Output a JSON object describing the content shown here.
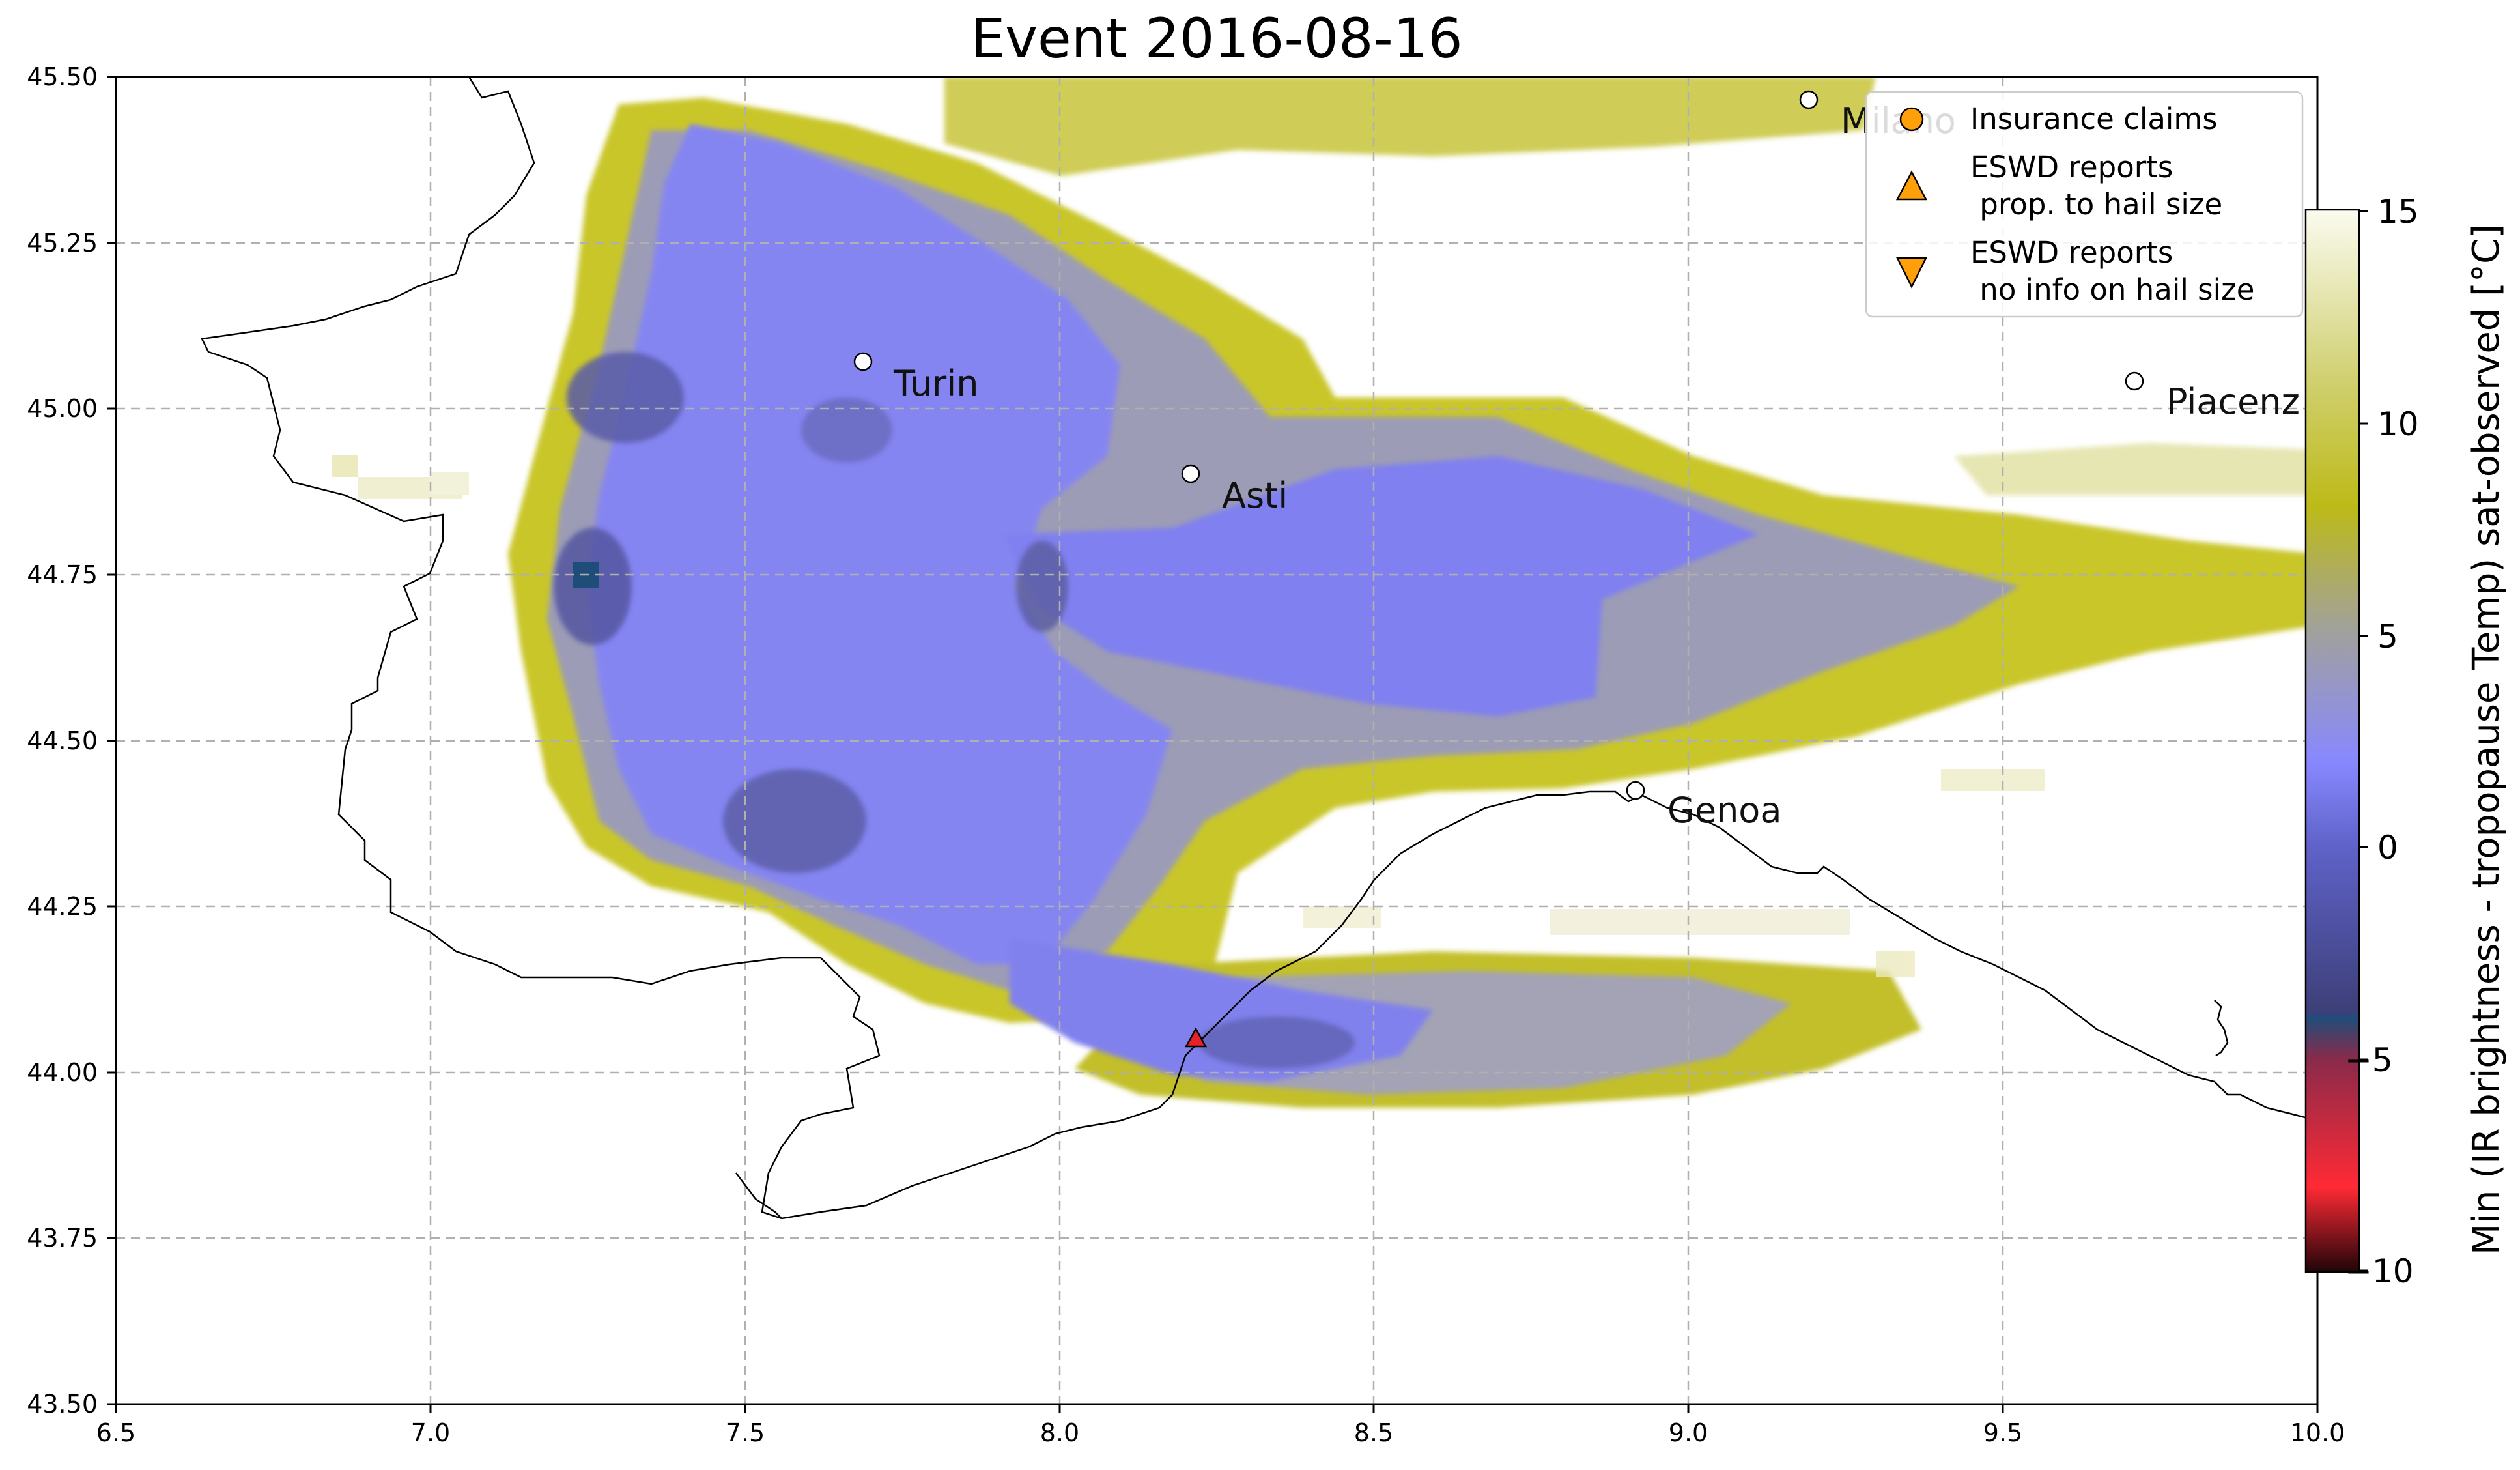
{
  "title": "Event 2016-08-16",
  "map": {
    "lon_range": [
      6.5,
      10.0
    ],
    "lat_range": [
      43.5,
      45.5
    ],
    "x_ticks": [
      "6.5",
      "7.0",
      "7.5",
      "8.0",
      "8.5",
      "9.0",
      "9.5",
      "10.0"
    ],
    "y_ticks": [
      "43.50",
      "43.75",
      "44.00",
      "44.25",
      "44.50",
      "44.75",
      "45.00",
      "45.25",
      "45.50"
    ],
    "grid": true,
    "grid_style": "dashed"
  },
  "cities": [
    {
      "name": "Turin",
      "lon": 7.69,
      "lat": 45.07
    },
    {
      "name": "Asti",
      "lon": 8.21,
      "lat": 44.9
    },
    {
      "name": "Genoa",
      "lon": 8.92,
      "lat": 44.42
    },
    {
      "name": "Milano",
      "lon": 9.19,
      "lat": 45.46
    },
    {
      "name": "Piacenz",
      "lon": 9.7,
      "lat": 45.04
    }
  ],
  "reports": [
    {
      "type": "eswd_hail_size",
      "lon": 8.22,
      "lat": 44.05,
      "color": "#e8202a"
    }
  ],
  "legend": {
    "position": "top-right",
    "items": [
      {
        "symbol": "circle",
        "color": "#ff9f0a",
        "label": "Insurance claims"
      },
      {
        "symbol": "triangle-up",
        "color": "#ff9f0a",
        "line1": "ESWD reports",
        "line2": " prop. to hail size"
      },
      {
        "symbol": "triangle-down",
        "color": "#ff9f0a",
        "line1": "ESWD reports",
        "line2": " no info on hail size"
      }
    ]
  },
  "colorbar": {
    "label": "Min (IR brightness - tropopause Temp) sat-observed [°C]",
    "range": [
      -10,
      15
    ],
    "ticks": [
      "15",
      "10",
      "5",
      "0",
      "−5",
      "−10"
    ],
    "stops": [
      {
        "v": -10,
        "color": "#200408"
      },
      {
        "v": -8,
        "color": "#ff2a35"
      },
      {
        "v": -5,
        "color": "#8a2a4a"
      },
      {
        "v": -4,
        "color": "#1f4d7a"
      },
      {
        "v": -3.9,
        "color": "#3d3f78"
      },
      {
        "v": 0,
        "color": "#5f62c8"
      },
      {
        "v": 2,
        "color": "#8888ff"
      },
      {
        "v": 5,
        "color": "#a0a0a0"
      },
      {
        "v": 8,
        "color": "#bdba18"
      },
      {
        "v": 11,
        "color": "#d0d070"
      },
      {
        "v": 15,
        "color": "#fbfbf0"
      }
    ]
  },
  "chart_data": {
    "type": "heatmap",
    "title": "Event 2016-08-16",
    "xlim": [
      6.5,
      10.0
    ],
    "ylim": [
      43.5,
      45.5
    ],
    "value_label": "Min (IR brightness - tropopause Temp) sat-observed [°C]",
    "value_range": [
      -10,
      15
    ],
    "cells_approx": [
      {
        "lon": 7.7,
        "lat": 44.9,
        "value": 2
      },
      {
        "lon": 7.6,
        "lat": 44.7,
        "value": 2
      },
      {
        "lon": 7.22,
        "lat": 44.74,
        "value": -3
      },
      {
        "lon": 7.55,
        "lat": 44.35,
        "value": 0
      },
      {
        "lon": 8.35,
        "lat": 44.65,
        "value": 3
      },
      {
        "lon": 8.6,
        "lat": 44.05,
        "value": 2
      },
      {
        "lon": 9.3,
        "lat": 44.6,
        "value": 9
      },
      {
        "lon": 9.2,
        "lat": 45.44,
        "value": 10
      },
      {
        "lon": 9.8,
        "lat": 44.9,
        "value": 11
      }
    ]
  }
}
